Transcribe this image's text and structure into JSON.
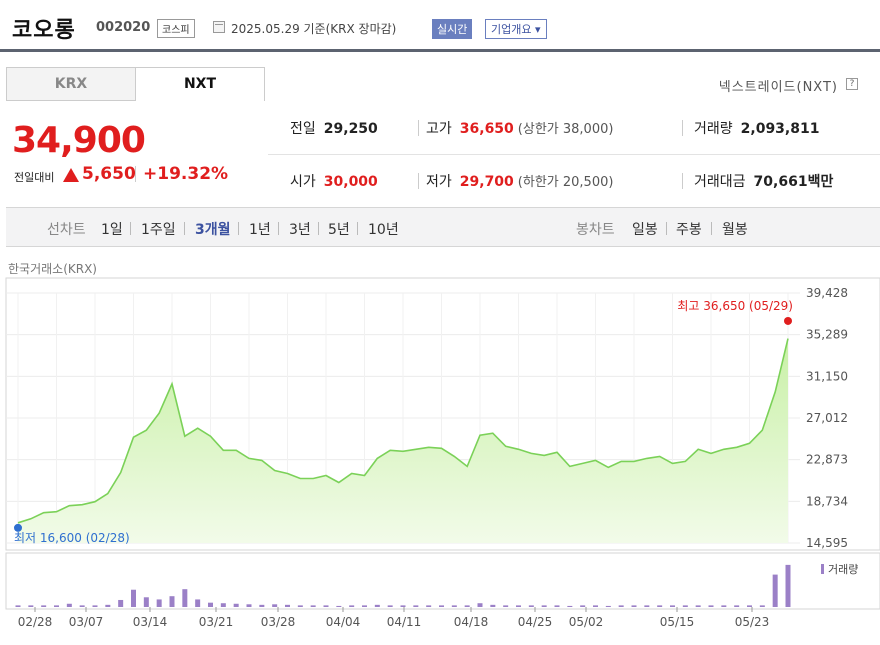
{
  "header": {
    "name": "코오롱",
    "code": "002020",
    "market": "코스피",
    "date": "2025.05.29 기준(KRX 장마감)",
    "live": "실시간",
    "info": "기업개요 ▾"
  },
  "tabs": [
    {
      "label": "KRX",
      "active": false
    },
    {
      "label": "NXT",
      "active": true
    }
  ],
  "nxt_label": "넥스트레이드(NXT)",
  "help": "?",
  "price": {
    "current": "34,900",
    "change_label": "전일대비",
    "change": "5,650",
    "change_pct": "+19.32%",
    "color_up": "#e01e1e"
  },
  "stats": {
    "prev_close": {
      "k": "전일",
      "v": "29,250"
    },
    "high": {
      "k": "고가",
      "v": "36,650",
      "sub": "(상한가 38,000)"
    },
    "volume": {
      "k": "거래량",
      "v": "2,093,811"
    },
    "open": {
      "k": "시가",
      "v": "30,000"
    },
    "low": {
      "k": "저가",
      "v": "29,700",
      "sub": "(하한가 20,500)"
    },
    "amount": {
      "k": "거래대금",
      "v": "70,661",
      "unit": "백만"
    }
  },
  "period_bar": {
    "line_label": "선차트",
    "line_items": [
      "1일",
      "1주일",
      "3개월",
      "1년",
      "3년",
      "5년",
      "10년"
    ],
    "active_line": "3개월",
    "candle_label": "봉차트",
    "candle_items": [
      "일봉",
      "주봉",
      "월봉"
    ]
  },
  "source_label": "한국거래소(KRX)",
  "chart_data": {
    "type": "area",
    "ylim": [
      14595,
      39428
    ],
    "yticks": [
      "39,428",
      "35,289",
      "31,150",
      "27,012",
      "22,873",
      "18,734",
      "14,595"
    ],
    "xticks": [
      "02/28",
      "03/07",
      "03/14",
      "03/21",
      "03/28",
      "04/04",
      "04/11",
      "04/18",
      "04/25",
      "05/02",
      "05/15",
      "05/23"
    ],
    "max_annotation": "최고 36,650 (05/29)",
    "min_annotation": "최저 16,600 (02/28)",
    "volume_legend": "거래량",
    "line_color": "#7bd158",
    "fill_color": "#cdf0b6",
    "volume_color": "#9b80c7",
    "prices": [
      16600,
      17000,
      17600,
      17700,
      18300,
      18400,
      18700,
      19500,
      21600,
      25100,
      25800,
      27500,
      30400,
      25200,
      26000,
      25200,
      23800,
      23800,
      23000,
      22800,
      21800,
      21500,
      21000,
      21000,
      21300,
      20600,
      21500,
      21300,
      23000,
      23800,
      23700,
      23900,
      24100,
      24000,
      23200,
      22200,
      25300,
      25500,
      24200,
      23900,
      23500,
      23300,
      23600,
      22200,
      22500,
      22800,
      22100,
      22700,
      22700,
      23000,
      23200,
      22500,
      22700,
      23900,
      23500,
      23900,
      24100,
      24500,
      25800,
      29600,
      34900
    ],
    "volumes": [
      0.03,
      0.03,
      0.03,
      0.03,
      0.06,
      0.03,
      0.03,
      0.04,
      0.13,
      0.32,
      0.18,
      0.14,
      0.2,
      0.33,
      0.14,
      0.08,
      0.07,
      0.06,
      0.05,
      0.04,
      0.05,
      0.04,
      0.03,
      0.03,
      0.03,
      0.02,
      0.03,
      0.03,
      0.04,
      0.03,
      0.03,
      0.03,
      0.03,
      0.03,
      0.03,
      0.03,
      0.07,
      0.04,
      0.03,
      0.03,
      0.03,
      0.03,
      0.03,
      0.02,
      0.03,
      0.03,
      0.02,
      0.03,
      0.03,
      0.03,
      0.03,
      0.03,
      0.03,
      0.03,
      0.03,
      0.03,
      0.03,
      0.03,
      0.03,
      0.6,
      0.78
    ]
  }
}
